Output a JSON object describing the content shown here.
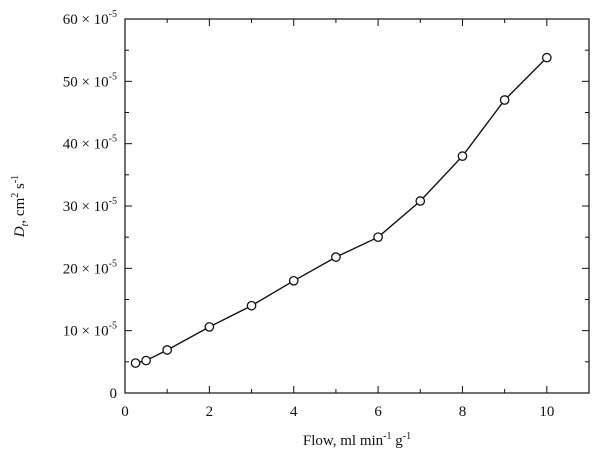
{
  "chart_data": {
    "type": "line",
    "x": [
      0.25,
      0.5,
      1,
      2,
      3,
      4,
      5,
      6,
      7,
      8,
      9,
      10
    ],
    "series": [
      {
        "values": [
          4.8,
          5.2,
          6.9,
          10.6,
          14.0,
          18.0,
          21.8,
          25.0,
          30.8,
          38.0,
          47.0,
          53.8
        ]
      }
    ],
    "y_scale_factor": "× 10⁻⁵",
    "xlim": [
      0,
      11
    ],
    "ylim": [
      0,
      60
    ],
    "xticks": [
      0,
      2,
      4,
      6,
      8,
      10
    ],
    "yticks": [
      0,
      10,
      20,
      30,
      40,
      50,
      60
    ],
    "xtick_labels": [
      "0",
      "2",
      "4",
      "6",
      "8",
      "10"
    ],
    "ytick_labels": [
      {
        "mantissa": "0",
        "exp": ""
      },
      {
        "mantissa": "10 × 10",
        "exp": "-5"
      },
      {
        "mantissa": "20 × 10",
        "exp": "-5"
      },
      {
        "mantissa": "30 × 10",
        "exp": "-5"
      },
      {
        "mantissa": "40 × 10",
        "exp": "-5"
      },
      {
        "mantissa": "50 × 10",
        "exp": "-5"
      },
      {
        "mantissa": "60 × 10",
        "exp": "-5"
      }
    ],
    "xlabel": {
      "text": "Flow, ml min",
      "sup1": "-1",
      "mid": " g",
      "sup2": "-1"
    },
    "ylabel": {
      "var": "D",
      "sub": "t",
      "text": ", cm",
      "sup1": "2",
      "mid": " s",
      "sup2": "-1"
    },
    "grid": false,
    "legend": "none",
    "marker": "open-circle",
    "line_color": "#111111"
  }
}
